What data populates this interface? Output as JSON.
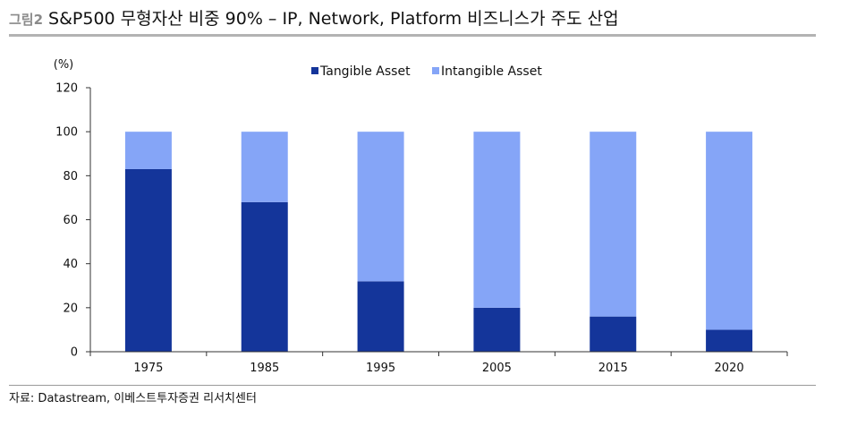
{
  "header": {
    "label": "그림2",
    "title": "S&P500 무형자산 비중 90% – IP, Network, Platform 비즈니스가 주도 산업"
  },
  "source": "자료: Datastream, 이베스트투자증권 리서치센터",
  "chart_data": {
    "type": "bar",
    "stacked": true,
    "ylabel": "(%)",
    "ylim": [
      0,
      120
    ],
    "yticks": [
      0,
      20,
      40,
      60,
      80,
      100,
      120
    ],
    "categories": [
      "1975",
      "1985",
      "1995",
      "2005",
      "2015",
      "2020"
    ],
    "legend_position": "top-center",
    "grid": false,
    "series": [
      {
        "name": "Tangible Asset",
        "color": "#14359a",
        "values": [
          83,
          68,
          32,
          20,
          16,
          10
        ]
      },
      {
        "name": "Intangible Asset",
        "color": "#85a5f7",
        "values": [
          17,
          32,
          68,
          80,
          84,
          90
        ]
      }
    ]
  }
}
